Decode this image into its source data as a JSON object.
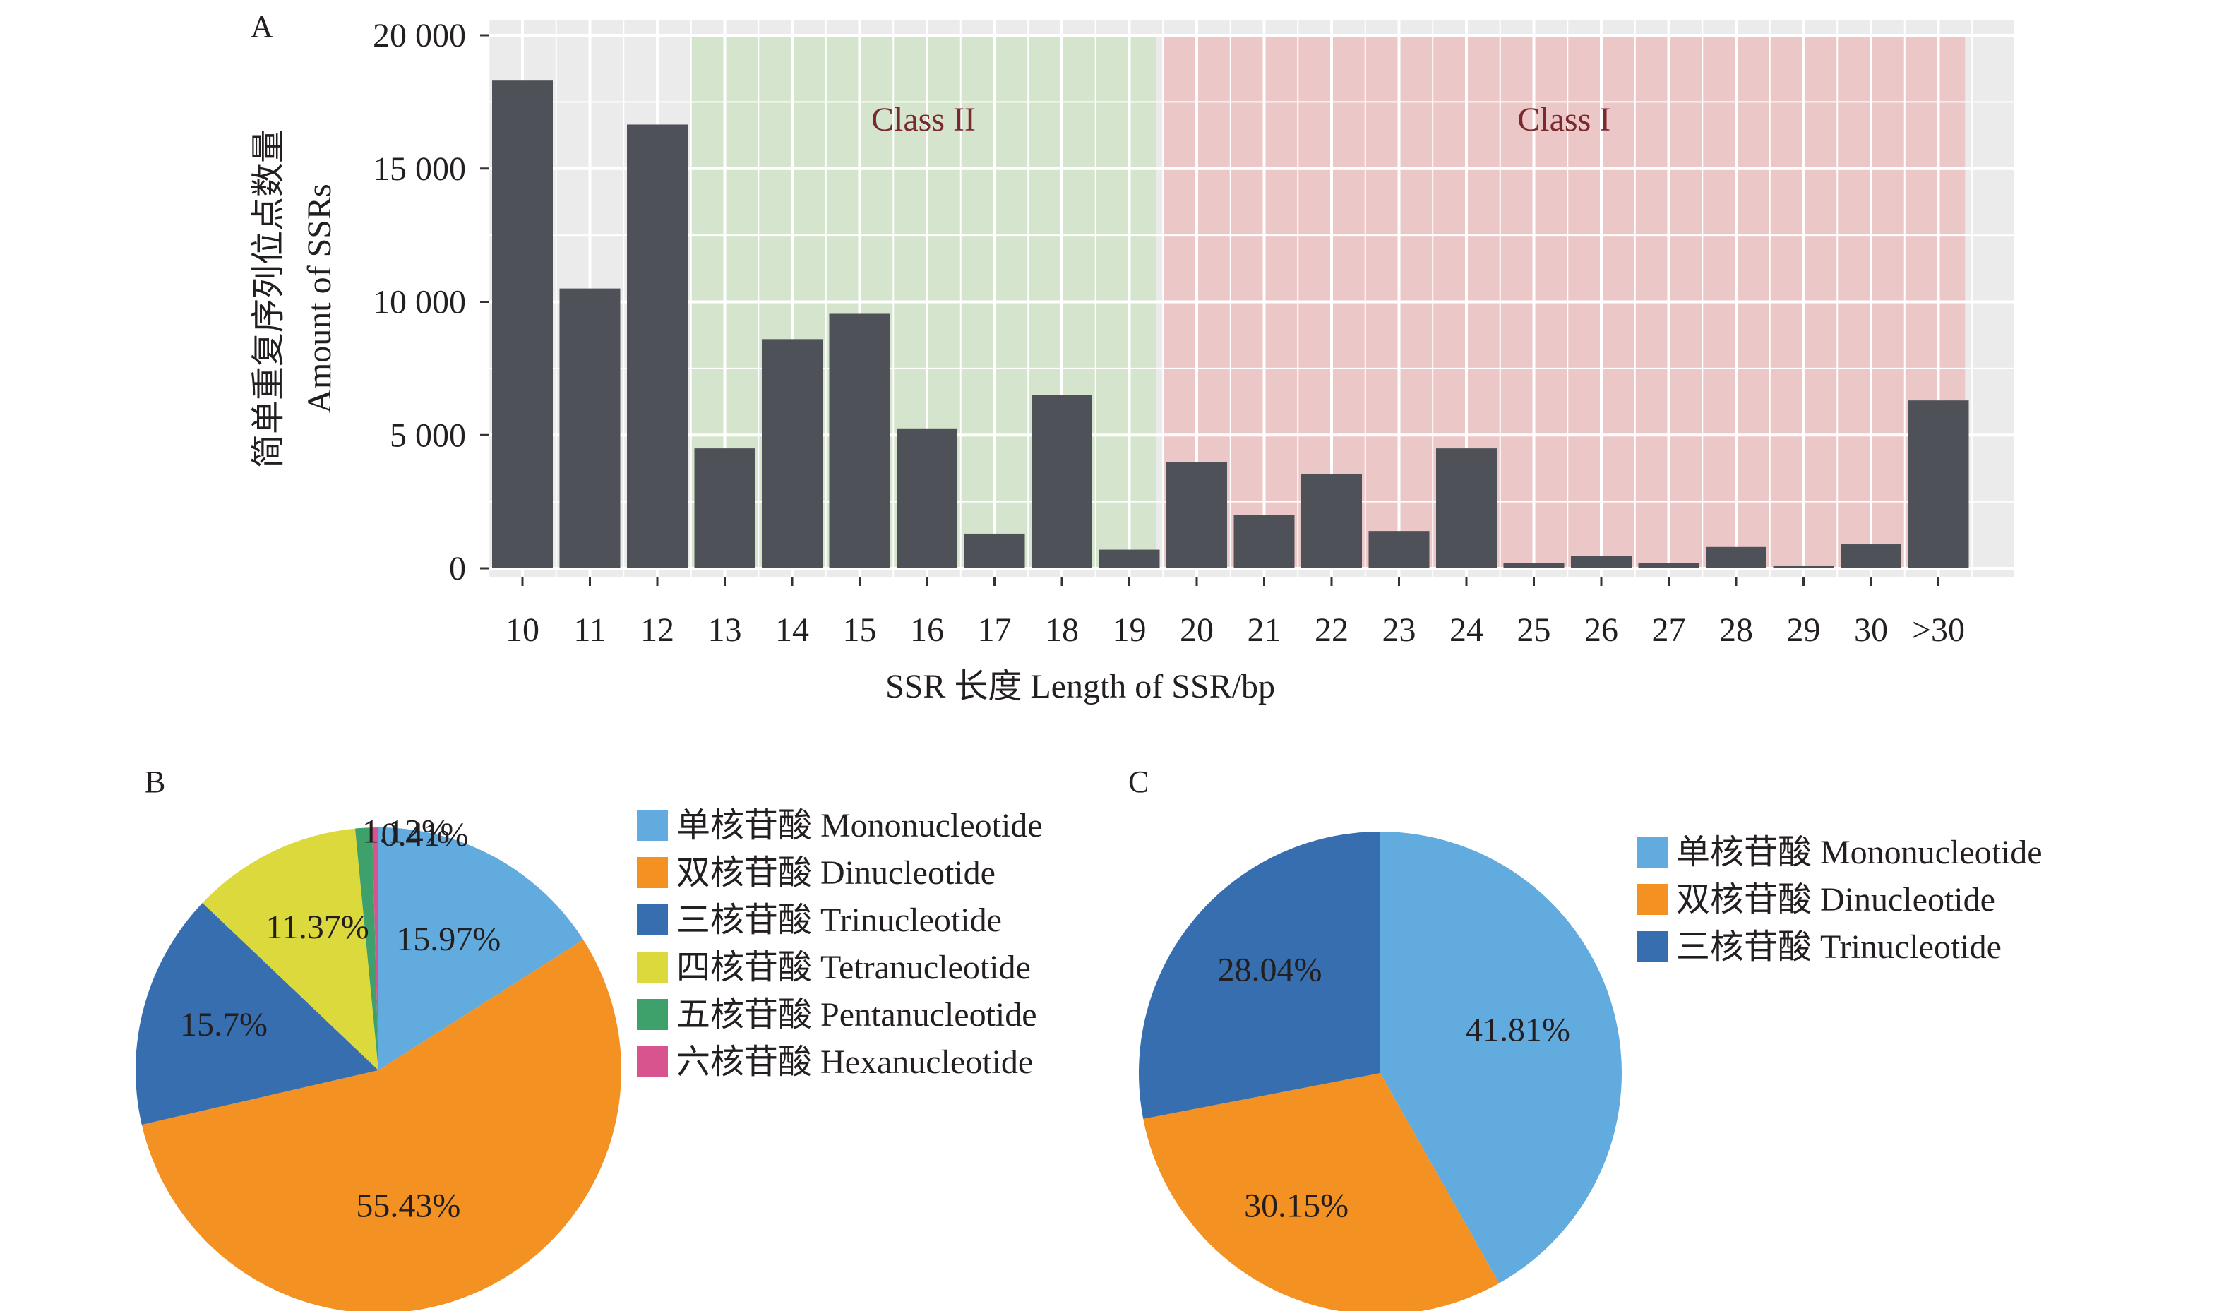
{
  "chart_data": [
    {
      "panel_label": "A",
      "type": "bar",
      "ylabel_cn": "简单重复序列位点数量",
      "ylabel": "Amount of SSRs",
      "xlabel": "SSR 长度 Length of SSR/bp",
      "ylim": [
        0,
        20000
      ],
      "yticks": [
        0,
        5000,
        10000,
        15000,
        20000
      ],
      "ytick_labels": [
        "0",
        "5 000",
        "10 000",
        "15 000",
        "20 000"
      ],
      "categories": [
        "10",
        "11",
        "12",
        "13",
        "14",
        "15",
        "16",
        "17",
        "18",
        "19",
        "20",
        "21",
        "22",
        "23",
        "24",
        "25",
        "26",
        "27",
        "28",
        "29",
        "30",
        ">30"
      ],
      "values": [
        18300,
        10500,
        16650,
        4500,
        8600,
        9550,
        5250,
        1300,
        6500,
        700,
        4000,
        2000,
        3550,
        1400,
        4500,
        200,
        450,
        200,
        800,
        80,
        900,
        6300
      ],
      "regions": [
        {
          "label": "Class II",
          "from": "13",
          "to": "19",
          "color": "#d5e4cc",
          "text_color": "#7a2a2e"
        },
        {
          "label": "Class I",
          "from": "20",
          "to": ">30",
          "color": "#ecc7c7",
          "text_color": "#7a2a2e"
        }
      ],
      "bar_color": "#4f5159",
      "grid": true
    },
    {
      "panel_label": "B",
      "type": "pie",
      "slices": [
        {
          "name": "单核苷酸 Mononucleotide",
          "value": 15.97,
          "label": "15.97%",
          "color": "#62abdf"
        },
        {
          "name": "双核苷酸 Dinucleotide",
          "value": 55.43,
          "label": "55.43%",
          "color": "#f39122"
        },
        {
          "name": "三核苷酸 Trinucleotide",
          "value": 15.7,
          "label": "15.7%",
          "color": "#366eaf"
        },
        {
          "name": "四核苷酸 Tetranucleotide",
          "value": 11.37,
          "label": "11.37%",
          "color": "#dbd93b"
        },
        {
          "name": "五核苷酸 Pentanucleotide",
          "value": 1.12,
          "label": "1.12%",
          "color": "#3ea06b"
        },
        {
          "name": "六核苷酸 Hexanucleotide",
          "value": 0.41,
          "label": "0.41%",
          "color": "#d7548e"
        }
      ],
      "legend_position": "right"
    },
    {
      "panel_label": "C",
      "type": "pie",
      "slices": [
        {
          "name": "单核苷酸 Mononucleotide",
          "value": 41.81,
          "label": "41.81%",
          "color": "#62abdf"
        },
        {
          "name": "双核苷酸 Dinucleotide",
          "value": 30.15,
          "label": "30.15%",
          "color": "#f39122"
        },
        {
          "name": "三核苷酸 Trinucleotide",
          "value": 28.04,
          "label": "28.04%",
          "color": "#366eaf"
        }
      ],
      "legend_position": "right"
    }
  ]
}
